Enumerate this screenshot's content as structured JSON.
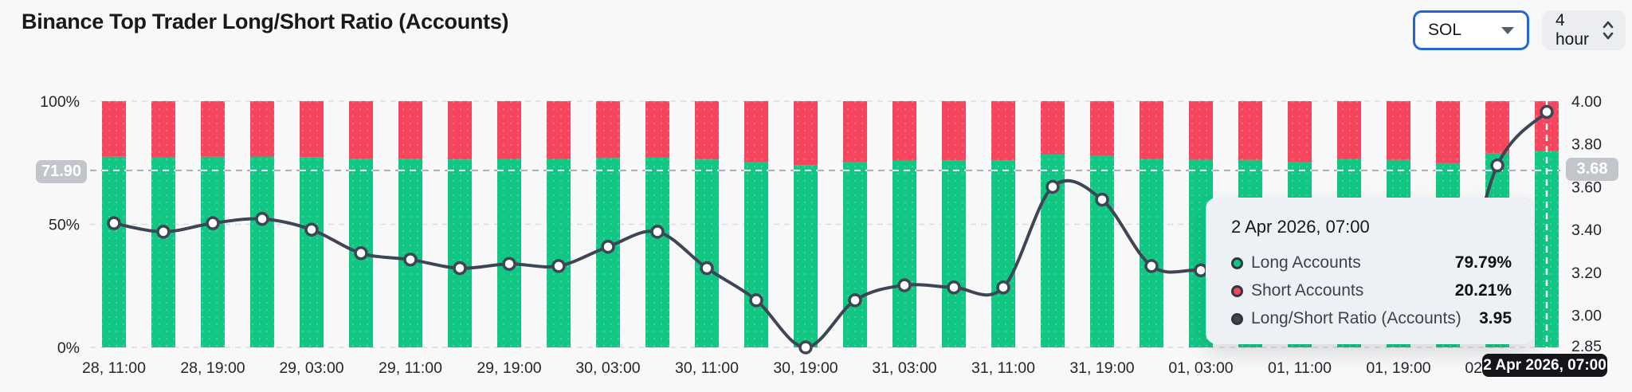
{
  "header": {
    "title": "Binance Top Trader Long/Short Ratio (Accounts)",
    "symbol_select": {
      "value": "SOL"
    },
    "interval_select": {
      "value": "4 hour"
    }
  },
  "colors": {
    "long_green": "#12c783",
    "short_red": "#f6465d",
    "ratio_line": "#3e4555",
    "gridline": "#d7dadf",
    "axis_text": "#23262b",
    "crosshair_badge_bg": "#c2c5ca",
    "x_badge_bg": "#141619",
    "background": "#f8f8f9"
  },
  "chart_data": {
    "type": "bar",
    "subtype": "stacked-percent-bars-with-ratio-line",
    "x_tick_labels": [
      "28, 11:00",
      "28, 19:00",
      "29, 03:00",
      "29, 11:00",
      "29, 19:00",
      "30, 03:00",
      "30, 11:00",
      "30, 19:00",
      "31, 03:00",
      "31, 11:00",
      "31, 19:00",
      "01, 03:00",
      "01, 11:00",
      "01, 19:00",
      "02, 03:00"
    ],
    "x_tick_every_n_bars": 2,
    "n_bars": 30,
    "series": [
      {
        "name": "Long Accounts",
        "unit": "%",
        "color": "#12c783",
        "values": [
          77.4,
          77.2,
          77.4,
          77.5,
          77.3,
          76.7,
          76.5,
          76.3,
          76.4,
          76.4,
          76.9,
          77.2,
          76.3,
          75.4,
          74.0,
          75.4,
          75.9,
          75.8,
          75.8,
          78.3,
          78.0,
          76.4,
          76.2,
          76.1,
          75.4,
          76.4,
          76.1,
          74.8,
          78.7,
          79.79
        ]
      },
      {
        "name": "Short Accounts",
        "unit": "%",
        "color": "#f6465d",
        "values": [
          22.6,
          22.8,
          22.6,
          22.5,
          22.7,
          23.3,
          23.5,
          23.7,
          23.6,
          23.6,
          23.1,
          22.8,
          23.7,
          24.6,
          26.0,
          24.6,
          24.1,
          24.2,
          24.2,
          21.7,
          22.0,
          23.6,
          23.8,
          23.9,
          24.6,
          23.6,
          23.9,
          25.2,
          21.3,
          20.21
        ]
      },
      {
        "name": "Long/Short Ratio (Accounts)",
        "unit": "",
        "color": "#3e4555",
        "values": [
          3.43,
          3.39,
          3.43,
          3.45,
          3.4,
          3.29,
          3.26,
          3.22,
          3.24,
          3.23,
          3.32,
          3.39,
          3.22,
          3.07,
          2.85,
          3.07,
          3.14,
          3.13,
          3.13,
          3.6,
          3.54,
          3.23,
          3.21,
          3.18,
          3.07,
          3.24,
          3.18,
          2.97,
          3.7,
          3.95
        ]
      }
    ],
    "left_axis": {
      "ticks": [
        {
          "label": "100%",
          "value": 100
        },
        {
          "label": "50%",
          "value": 50
        },
        {
          "label": "0%",
          "value": 0
        }
      ],
      "min": 0,
      "max": 100
    },
    "right_axis": {
      "ticks": [
        {
          "label": "4.00",
          "value": 4.0
        },
        {
          "label": "3.80",
          "value": 3.8
        },
        {
          "label": "3.60",
          "value": 3.6
        },
        {
          "label": "3.40",
          "value": 3.4
        },
        {
          "label": "3.20",
          "value": 3.2
        },
        {
          "label": "3.00",
          "value": 3.0
        },
        {
          "label": "2.85",
          "value": 2.85
        }
      ],
      "min": 2.85,
      "max": 4.0
    },
    "grid": "dashed-horizontal-at-left-ticks",
    "crosshair": {
      "y_left_label": "71.90",
      "y_left_pct": 71.9,
      "y_right_label": "3.68",
      "y_right_ratio": 3.68,
      "x_bar_index": 29,
      "x_label": "2 Apr 2026, 07:00"
    }
  },
  "tooltip": {
    "title": "2 Apr 2026, 07:00",
    "rows": [
      {
        "label": "Long Accounts",
        "value": "79.79%",
        "color": "#12c783"
      },
      {
        "label": "Short Accounts",
        "value": "20.21%",
        "color": "#f6465d"
      },
      {
        "label": "Long/Short Ratio (Accounts)",
        "value": "3.95",
        "color": "#3e4555"
      }
    ]
  }
}
